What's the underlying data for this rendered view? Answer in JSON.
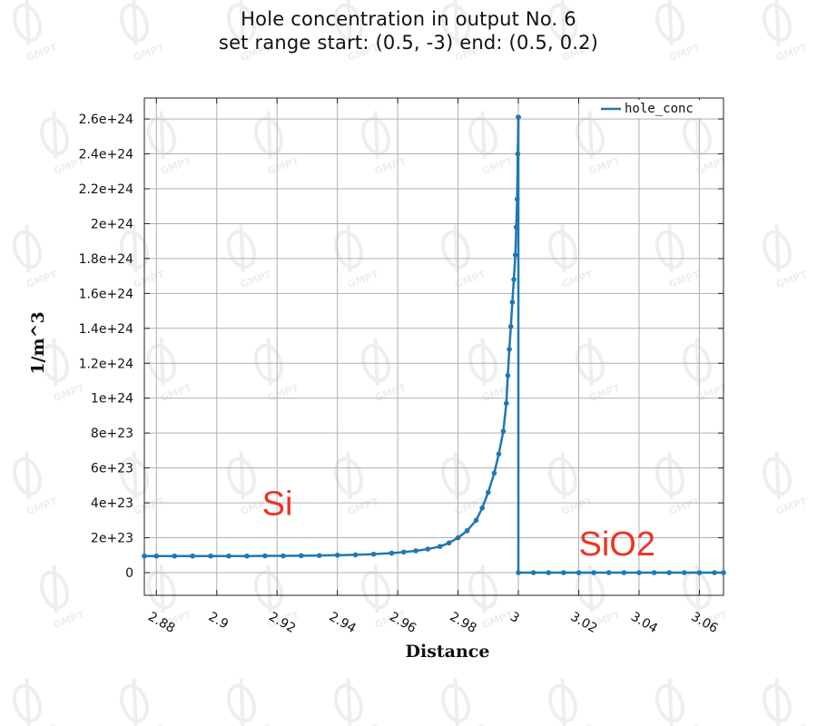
{
  "title_lines": [
    "Hole concentration in output No. 6",
    "set range start: (0.5, -3) end: (0.5, 0.2)"
  ],
  "watermark_text": "GMPT",
  "colors": {
    "series": "#1f77b4",
    "grid": "#b0b0b0",
    "annotation": "#ee3322",
    "watermark": "#eceef2"
  },
  "chart_data": {
    "type": "line",
    "title": "Hole concentration in output No. 6\nset range start: (0.5, -3) end: (0.5, 0.2)",
    "xlabel": "Distance",
    "ylabel": "1/m^3",
    "xlim": [
      2.876,
      3.068
    ],
    "ylim": [
      -1.3e+23,
      2.72e+24
    ],
    "grid": true,
    "legend_position": "top-right",
    "x_ticks": [
      2.88,
      2.9,
      2.92,
      2.94,
      2.96,
      2.98,
      3,
      3.02,
      3.04,
      3.06
    ],
    "x_tick_labels": [
      "2.88",
      "2.9",
      "2.92",
      "2.94",
      "2.96",
      "2.98",
      "3",
      "3.02",
      "3.04",
      "3.06"
    ],
    "y_ticks": [
      0,
      2e+23,
      4e+23,
      6e+23,
      8e+23,
      1e+24,
      1.2e+24,
      1.4e+24,
      1.6e+24,
      1.8e+24,
      2e+24,
      2.2e+24,
      2.4e+24,
      2.6e+24
    ],
    "y_tick_labels": [
      "0",
      "2e+23",
      "4e+23",
      "6e+23",
      "8e+23",
      "1e+24",
      "1.2e+24",
      "1.4e+24",
      "1.6e+24",
      "1.8e+24",
      "2e+24",
      "2.2e+24",
      "2.4e+24",
      "2.6e+24"
    ],
    "annotations": [
      {
        "text": "Si",
        "x": 2.915,
        "y": 3.3e+23
      },
      {
        "text": "SiO2",
        "x": 3.02,
        "y": 1e+23
      }
    ],
    "series": [
      {
        "name": "hole_conc",
        "segments": [
          {
            "x": [
              2.876,
              2.88,
              2.886,
              2.892,
              2.898,
              2.904,
              2.91,
              2.916,
              2.922,
              2.928,
              2.934,
              2.94,
              2.946,
              2.952,
              2.958,
              2.962,
              2.966,
              2.97,
              2.974,
              2.977,
              2.98,
              2.983,
              2.986,
              2.988,
              2.99,
              2.992,
              2.9935,
              2.995,
              2.996,
              2.9965,
              2.997,
              2.9975,
              2.998,
              2.9985,
              2.999,
              2.9993,
              2.9996,
              2.9998,
              3.0
            ],
            "y": [
              9.5e+22,
              9.5e+22,
              9.5e+22,
              9.5e+22,
              9.5e+22,
              9.5e+22,
              9.5e+22,
              9.6e+22,
              9.6e+22,
              9.7e+22,
              9.8e+22,
              1e+23,
              1.02e+23,
              1.06e+23,
              1.12e+23,
              1.18e+23,
              1.25e+23,
              1.35e+23,
              1.5e+23,
              1.7e+23,
              2e+23,
              2.4e+23,
              3e+23,
              3.7e+23,
              4.6e+23,
              5.7e+23,
              6.8e+23,
              8.1e+23,
              9.7e+23,
              1.13e+24,
              1.28e+24,
              1.41e+24,
              1.55e+24,
              1.68e+24,
              1.82e+24,
              1.98e+24,
              2.14e+24,
              2.4e+24,
              2.61e+24
            ]
          },
          {
            "x": [
              3.0,
              3.0,
              3.005,
              3.01,
              3.015,
              3.02,
              3.025,
              3.03,
              3.035,
              3.04,
              3.045,
              3.05,
              3.055,
              3.06,
              3.065,
              3.068
            ],
            "y": [
              2.61e+24,
              0,
              0,
              0,
              0,
              0,
              0,
              0,
              0,
              0,
              0,
              0,
              0,
              0,
              0,
              0
            ]
          }
        ]
      }
    ]
  }
}
